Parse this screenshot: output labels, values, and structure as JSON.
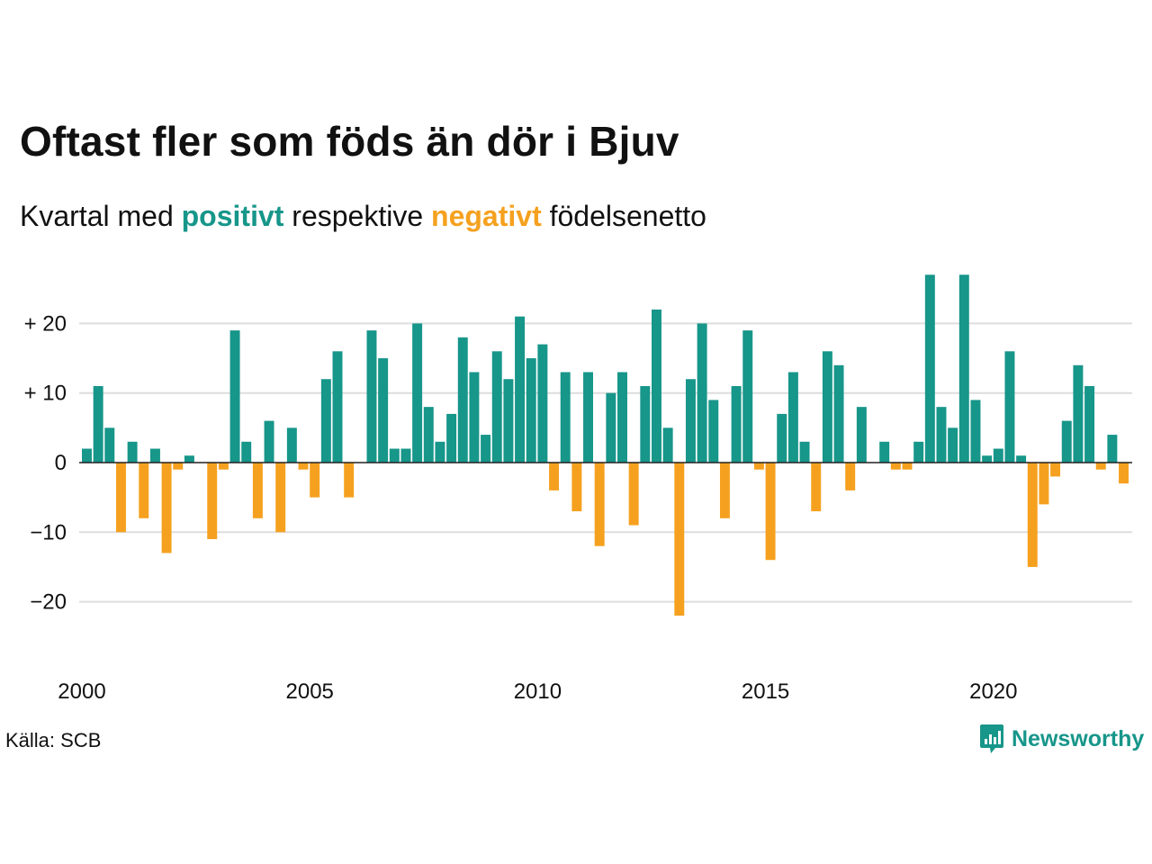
{
  "title": "Oftast fler som föds än dör i Bjuv",
  "subtitle": {
    "before": "Kvartal med ",
    "positive_word": "positivt",
    "middle": " respektive ",
    "negative_word": "negativt",
    "after": " födelsenetto"
  },
  "colors": {
    "positive": "#17968a",
    "negative": "#f5a11f",
    "grid": "#dddddd",
    "zero_line": "#222222",
    "brand": "#17968a"
  },
  "source": "Källa: SCB",
  "brand": {
    "name": "Newsworthy",
    "icon": "bar-chart-speech-bubble-icon"
  },
  "chart_data": {
    "type": "bar",
    "start_year": 2000,
    "periods_per_year": 4,
    "ylim": [
      -25,
      28
    ],
    "yticks": [
      {
        "value": 20,
        "label": "+ 20"
      },
      {
        "value": 10,
        "label": "+ 10"
      },
      {
        "value": 0,
        "label": "0"
      },
      {
        "value": -10,
        "label": "−10"
      },
      {
        "value": -20,
        "label": "−20"
      }
    ],
    "xticks": [
      2000,
      2005,
      2010,
      2015,
      2020
    ],
    "grid": true,
    "values": [
      2,
      11,
      5,
      -10,
      3,
      -8,
      2,
      -13,
      -1,
      1,
      0,
      -11,
      -1,
      19,
      3,
      -8,
      6,
      -10,
      5,
      -1,
      -5,
      12,
      16,
      -5,
      0,
      19,
      15,
      2,
      2,
      20,
      8,
      3,
      7,
      18,
      13,
      4,
      16,
      12,
      21,
      15,
      17,
      -4,
      13,
      -7,
      13,
      -12,
      10,
      13,
      -9,
      11,
      22,
      5,
      -22,
      12,
      20,
      9,
      -8,
      11,
      19,
      -1,
      -14,
      7,
      13,
      3,
      -7,
      16,
      14,
      -4,
      8,
      0,
      3,
      -1,
      -1,
      3,
      27,
      8,
      5,
      27,
      9,
      1,
      2,
      16,
      1,
      -15,
      -6,
      -2,
      6,
      14,
      11,
      -1,
      4,
      -3
    ]
  }
}
